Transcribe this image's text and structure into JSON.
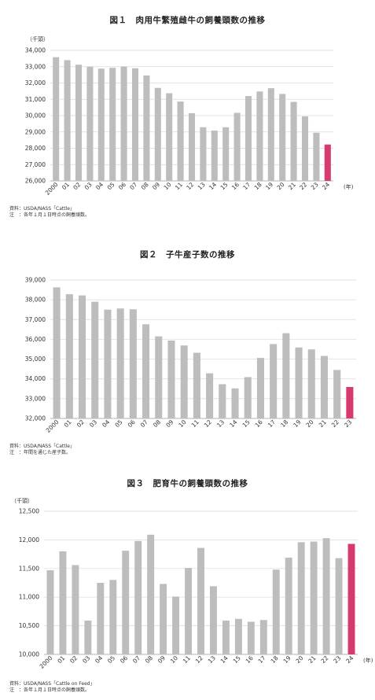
{
  "colors": {
    "bar": "#bdbdbd",
    "highlight": "#d63a6e",
    "grid": "#d9d9d9",
    "axis": "#9a9a9a"
  },
  "chart_data": [
    {
      "type": "bar",
      "title": "図１　肉用牛繁殖雌牛の飼養頭数の推移",
      "unit": "（千頭）",
      "xunit": "(年)",
      "categories": [
        "2000",
        "01",
        "02",
        "03",
        "04",
        "05",
        "06",
        "07",
        "08",
        "09",
        "10",
        "11",
        "12",
        "13",
        "14",
        "15",
        "16",
        "17",
        "18",
        "19",
        "20",
        "21",
        "22",
        "23",
        "24"
      ],
      "values": [
        33580,
        33400,
        33120,
        33000,
        32880,
        32930,
        33010,
        32900,
        32460,
        31700,
        31370,
        30860,
        30150,
        29290,
        29080,
        29290,
        30170,
        31200,
        31480,
        31680,
        31330,
        30840,
        29950,
        28950,
        28230
      ],
      "highlight_index": 24,
      "ylim": [
        26000,
        34000
      ],
      "yticks": [
        26000,
        27000,
        28000,
        29000,
        30000,
        31000,
        32000,
        33000,
        34000
      ],
      "ytick_labels": [
        "26,000",
        "27,000",
        "28,000",
        "29,000",
        "30,000",
        "31,000",
        "32,000",
        "33,000",
        "34,000"
      ],
      "grid": true,
      "notes": [
        "資料：USDA/NASS「Cattle」",
        "注　：各年１月１日時点の飼養頭数。"
      ]
    },
    {
      "type": "bar",
      "title": "図２　子牛産子数の推移",
      "categories": [
        "2000",
        "01",
        "02",
        "03",
        "04",
        "05",
        "06",
        "07",
        "08",
        "09",
        "10",
        "11",
        "12",
        "13",
        "14",
        "15",
        "16",
        "17",
        "18",
        "19",
        "20",
        "21",
        "22",
        "23"
      ],
      "values": [
        38630,
        38280,
        38220,
        37900,
        37500,
        37560,
        37520,
        36760,
        36150,
        35940,
        35690,
        35320,
        34280,
        33730,
        33520,
        34090,
        35060,
        35760,
        36310,
        35590,
        35490,
        35160,
        34450,
        33590
      ],
      "highlight_index": 23,
      "ylim": [
        32000,
        39000
      ],
      "yticks": [
        32000,
        33000,
        34000,
        35000,
        36000,
        37000,
        38000,
        39000
      ],
      "ytick_labels": [
        "32,000",
        "33,000",
        "34,000",
        "35,000",
        "36,000",
        "37,000",
        "38,000",
        "39,000"
      ],
      "grid": true,
      "notes": [
        "資料：USDA/NASS「Cattle」",
        "注　：年間を通じた産子数。"
      ]
    },
    {
      "type": "bar",
      "title": "図３　肥育牛の飼養頭数の推移",
      "unit": "（千頭）",
      "xunit": "(年)",
      "categories": [
        "2000",
        "01",
        "02",
        "03",
        "04",
        "05",
        "06",
        "07",
        "08",
        "09",
        "10",
        "11",
        "12",
        "13",
        "14",
        "15",
        "16",
        "17",
        "18",
        "19",
        "20",
        "21",
        "22",
        "23",
        "24"
      ],
      "values": [
        11470,
        11800,
        11560,
        10590,
        11250,
        11300,
        11810,
        11980,
        12090,
        11230,
        11010,
        11510,
        11860,
        11190,
        10590,
        10620,
        10570,
        10600,
        11480,
        11690,
        11960,
        11970,
        12030,
        11680,
        11930
      ],
      "highlight_index": 24,
      "ylim": [
        10000,
        12500
      ],
      "yticks": [
        10000,
        10500,
        11000,
        11500,
        12000,
        12500
      ],
      "ytick_labels": [
        "10,000",
        "10,500",
        "11,000",
        "11,500",
        "12,000",
        "12,500"
      ],
      "grid": true,
      "notes": [
        "資料：USDA/NASS「Cattle on Feed」",
        "注　：各年１月１日時点の飼養頭数。"
      ]
    }
  ]
}
